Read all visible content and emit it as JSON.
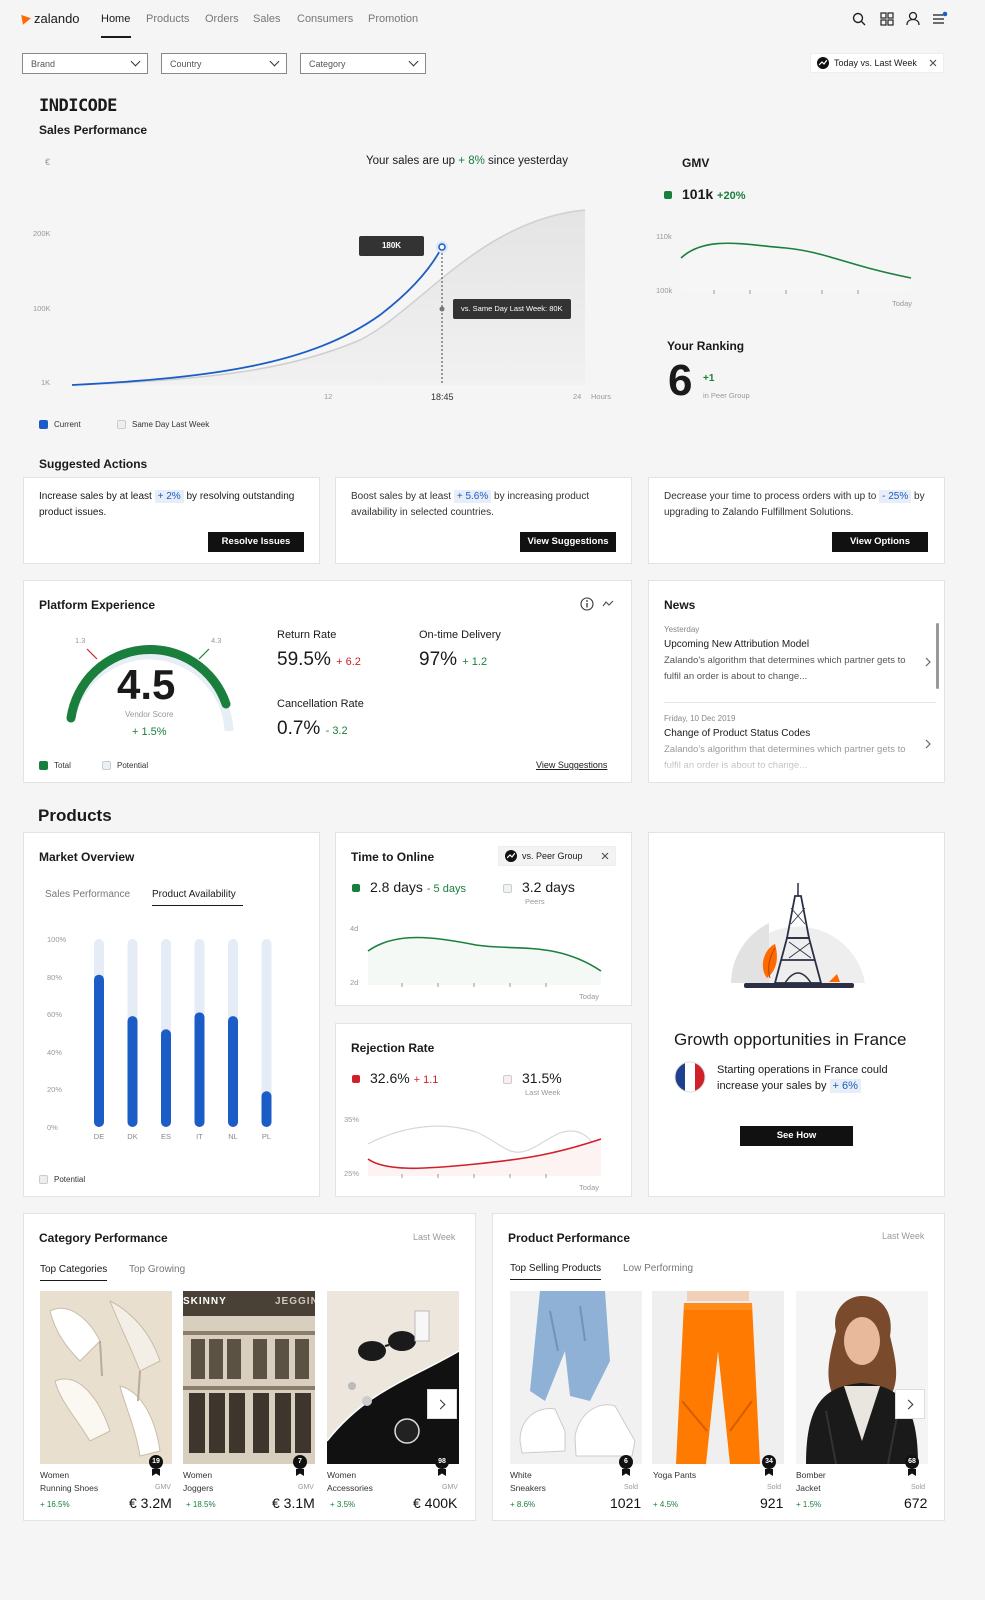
{
  "nav": {
    "logo": "zalando",
    "items": [
      "Home",
      "Products",
      "Orders",
      "Sales",
      "Consumers",
      "Promotion"
    ]
  },
  "filters": {
    "brand": "Brand",
    "country": "Country",
    "category": "Category",
    "compare": "Today vs. Last Week"
  },
  "brand_name": "INDICODE",
  "sales": {
    "section_title": "Sales Performance",
    "currency": "€",
    "headline_pre": "Your sales are up",
    "headline_pct": "+ 8%",
    "headline_post": "since yesterday",
    "y_ticks": [
      "200K",
      "100K",
      "1K"
    ],
    "x_ticks": [
      "12",
      "18:45",
      "24"
    ],
    "x_unit": "Hours",
    "tooltip_current": "180K",
    "tooltip_last_week": "vs. Same Day Last Week: 80K",
    "legend_current": "Current",
    "legend_last": "Same Day Last Week"
  },
  "gmv": {
    "title": "GMV",
    "value": "101k",
    "change": "+20%",
    "y_ticks": [
      "110k",
      "100k"
    ],
    "x_label": "Today"
  },
  "ranking": {
    "title": "Your Ranking",
    "value": "6",
    "change": "+1",
    "sub": "in Peer Group"
  },
  "suggested": {
    "title": "Suggested Actions",
    "cards": [
      {
        "pre": "Increase sales by at least",
        "hl": "+ 2%",
        "post": "by resolving outstanding product issues.",
        "button": "Resolve Issues"
      },
      {
        "pre": "Boost sales by at least",
        "hl": "+ 5.6%",
        "post": "by increasing product availability in selected countries.",
        "button": "View Suggestions"
      },
      {
        "pre": "Decrease your time to process orders with up to",
        "hl": "- 25%",
        "post": "by upgrading to Zalando Fulfillment Solutions.",
        "button": "View Options"
      }
    ]
  },
  "platform": {
    "title": "Platform Experience",
    "score": "4.5",
    "score_label": "Vendor Score",
    "score_change": "+ 1.5%",
    "gauge_min": "1.3",
    "gauge_max": "4.3",
    "legend_total": "Total",
    "legend_potential": "Potential",
    "return_label": "Return Rate",
    "return_value": "59.5%",
    "return_change": "+ 6.2",
    "ontime_label": "On-time Delivery",
    "ontime_value": "97%",
    "ontime_change": "+ 1.2",
    "cancel_label": "Cancellation Rate",
    "cancel_value": "0.7%",
    "cancel_change": "- 3.2",
    "link": "View Suggestions"
  },
  "news": {
    "title": "News",
    "items": [
      {
        "date": "Yesterday",
        "headline": "Upcoming New Attribution Model",
        "body": "Zalando's algorithm that determines which partner gets to fulfil an order is about to change..."
      },
      {
        "date": "Friday, 10 Dec 2019",
        "headline": "Change of Product Status Codes",
        "body": "Zalando's algorithm that determines which partner gets to fulfil an order is about to change..."
      }
    ]
  },
  "products_title": "Products",
  "market": {
    "title": "Market Overview",
    "tab1": "Sales Performance",
    "tab2": "Product Availability",
    "y_ticks": [
      "100%",
      "80%",
      "60%",
      "40%",
      "20%",
      "0%"
    ],
    "legend": "Potential"
  },
  "chart_data": {
    "type": "bar",
    "categories": [
      "DE",
      "DK",
      "ES",
      "IT",
      "NL",
      "PL"
    ],
    "series": [
      {
        "name": "Potential",
        "values": [
          100,
          100,
          100,
          100,
          100,
          100
        ]
      },
      {
        "values": [
          81,
          59,
          52,
          61,
          59,
          19
        ]
      }
    ],
    "ylim": [
      0,
      100
    ]
  },
  "time_online": {
    "title": "Time to Online",
    "compare": "vs. Peer Group",
    "value": "2.8 days",
    "change": "- 5 days",
    "peer_value": "3.2 days",
    "peer_label": "Peers",
    "y_ticks": [
      "4d",
      "2d"
    ],
    "x_label": "Today"
  },
  "rejection": {
    "title": "Rejection Rate",
    "value": "32.6%",
    "change": "+ 1.1",
    "last_value": "31.5%",
    "last_label": "Last Week",
    "y_ticks": [
      "35%",
      "25%"
    ],
    "x_label": "Today"
  },
  "growth": {
    "title": "Growth opportunities in France",
    "text_pre": "Starting operations in France could increase your sales by",
    "hl": "+ 6%",
    "button": "See How"
  },
  "category_perf": {
    "title": "Category Performance",
    "period": "Last Week",
    "tab1": "Top Categories",
    "tab2": "Top Growing",
    "items": [
      {
        "rank": "19",
        "name1": "Women",
        "name2": "Running Shoes",
        "label": "GMV",
        "growth": "+ 16.5%",
        "value": "€ 3.2M"
      },
      {
        "rank": "7",
        "name1": "Women",
        "name2": "Joggers",
        "label": "GMV",
        "growth": "+ 18.5%",
        "value": "€ 3.1M"
      },
      {
        "rank": "98",
        "name1": "Women",
        "name2": "Accessories",
        "label": "GMV",
        "growth": "+ 3.5%",
        "value": "€ 400K"
      }
    ],
    "sign1": "SKINNY",
    "sign2": "JEGGIN"
  },
  "product_perf": {
    "title": "Product Performance",
    "period": "Last Week",
    "tab1": "Top Selling Products",
    "tab2": "Low Performing",
    "items": [
      {
        "rank": "6",
        "name1": "White",
        "name2": "Sneakers",
        "label": "Sold",
        "growth": "+ 8.6%",
        "value": "1021"
      },
      {
        "rank": "34",
        "name1": "Yoga Pants",
        "name2": "",
        "label": "Sold",
        "growth": "+ 4.5%",
        "value": "921"
      },
      {
        "rank": "68",
        "name1": "Bomber",
        "name2": "Jacket",
        "label": "Sold",
        "growth": "+ 1.5%",
        "value": "672"
      }
    ]
  },
  "colors": {
    "accent": "#1b5cc7",
    "green": "#1a7f3c",
    "red": "#d0202a",
    "brand": "#ff6900"
  }
}
